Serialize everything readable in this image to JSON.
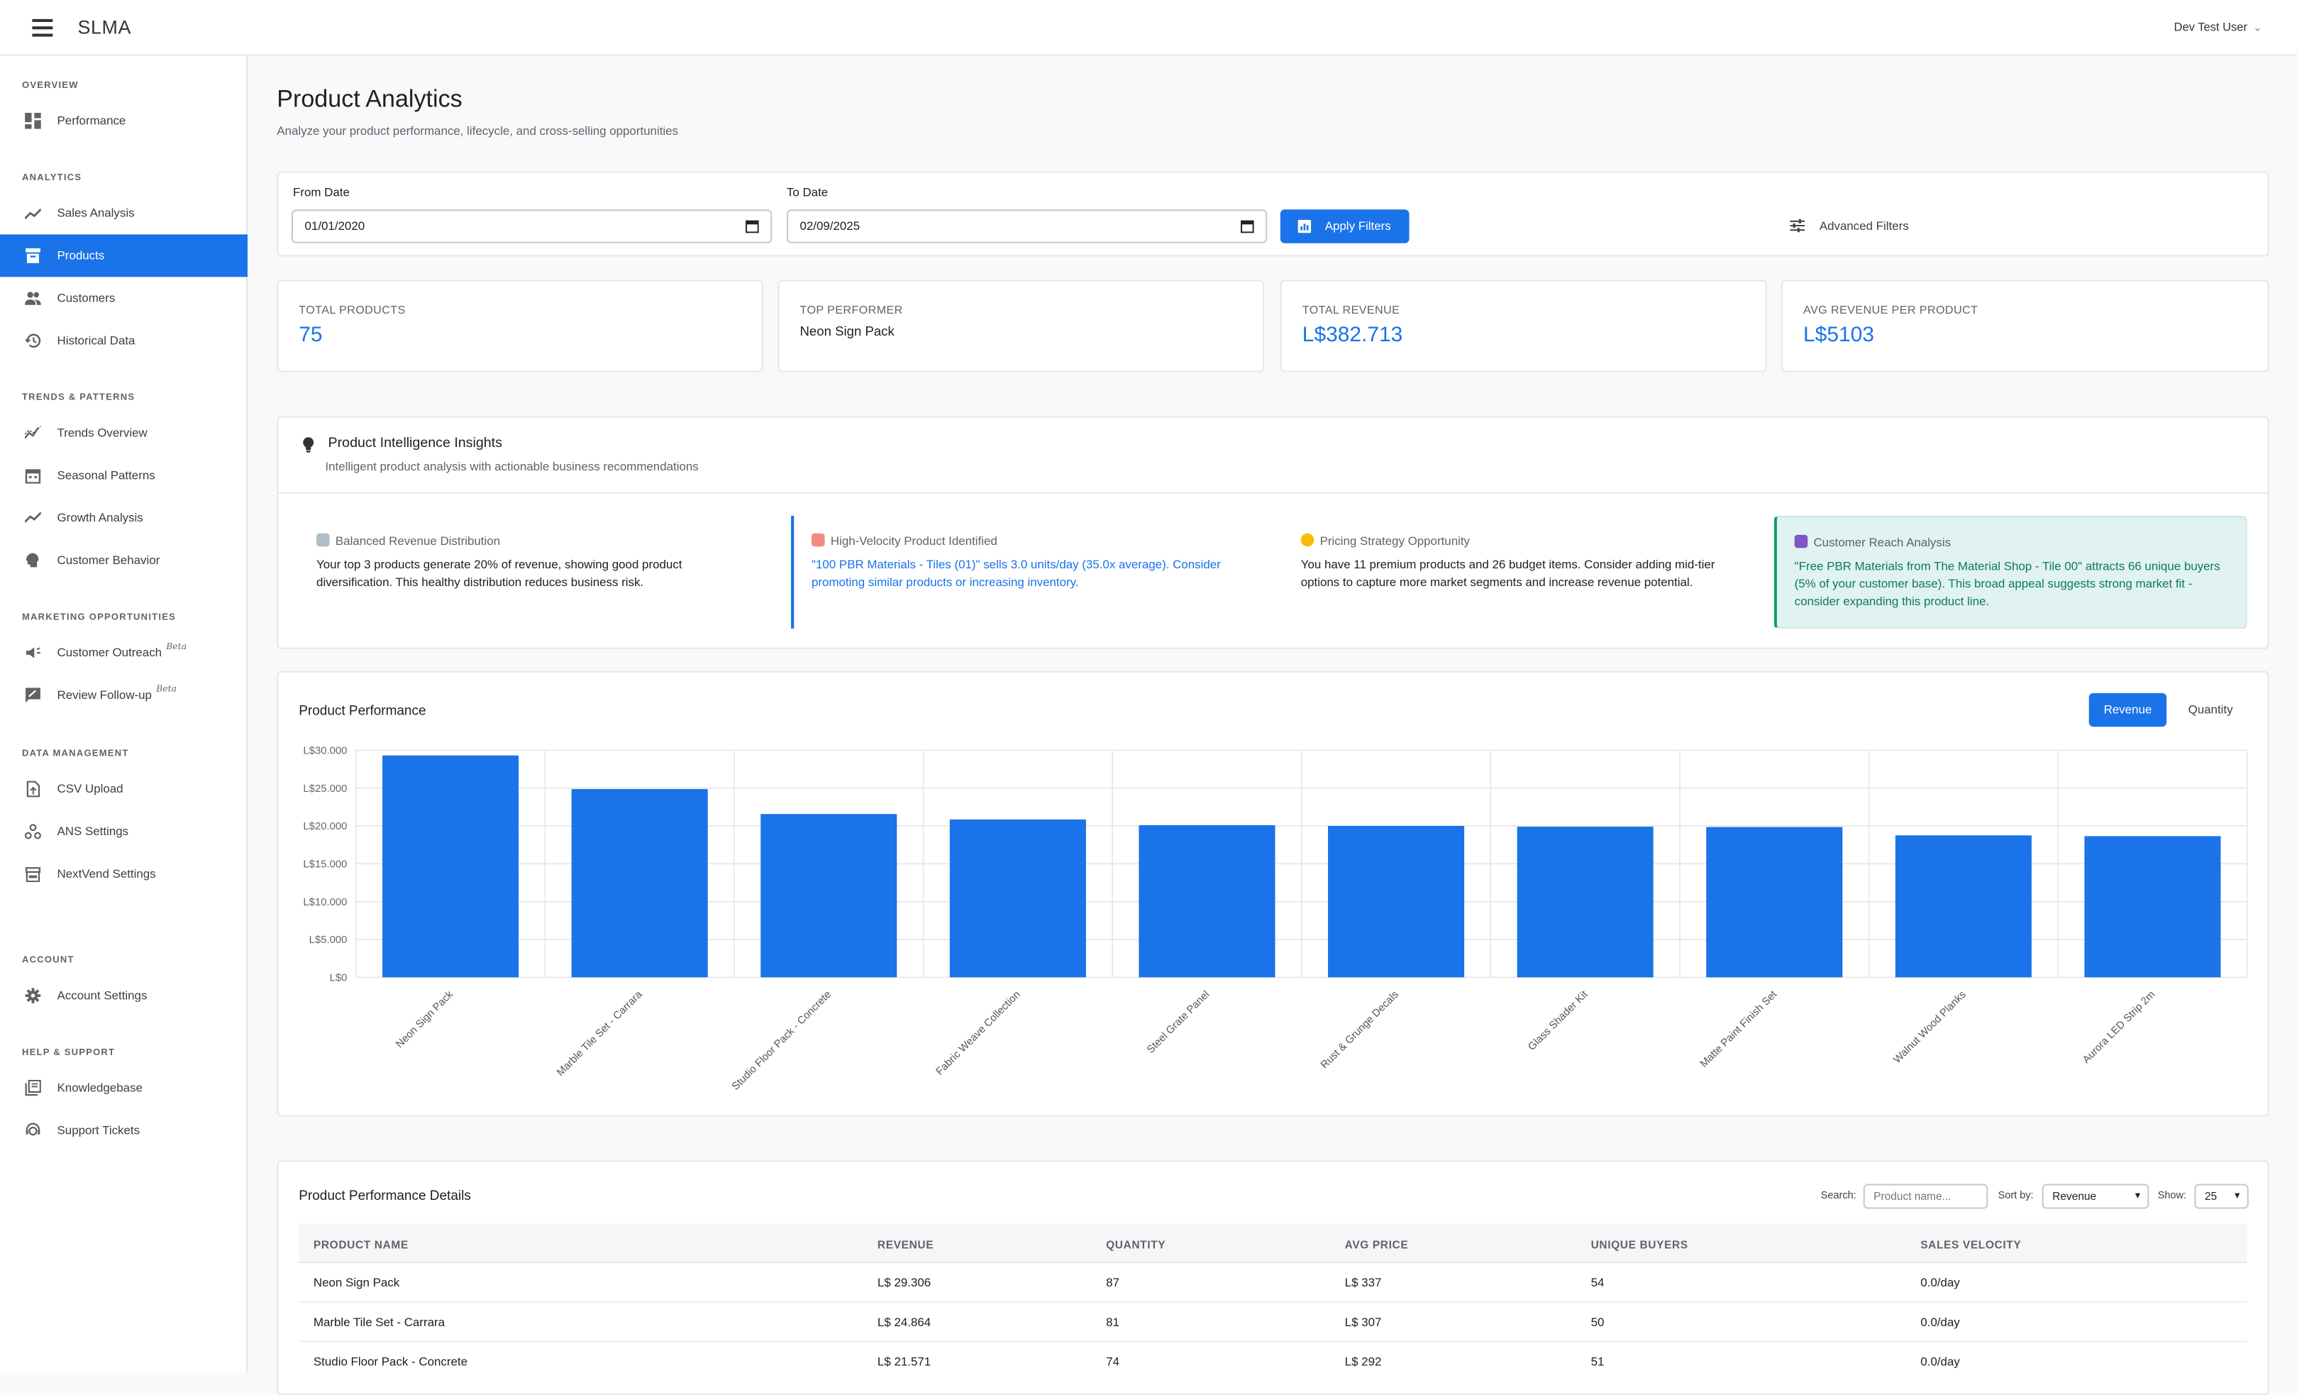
{
  "app": {
    "brand": "SLMA",
    "user": "Dev Test User"
  },
  "sidebar": {
    "sections": [
      {
        "title": "OVERVIEW",
        "items": [
          {
            "label": "Performance",
            "icon": "dashboard-icon"
          }
        ]
      },
      {
        "title": "ANALYTICS",
        "items": [
          {
            "label": "Sales Analysis",
            "icon": "trending-up-icon"
          },
          {
            "label": "Products",
            "icon": "inventory-icon",
            "active": true
          },
          {
            "label": "Customers",
            "icon": "people-icon"
          },
          {
            "label": "Historical Data",
            "icon": "history-icon"
          }
        ]
      },
      {
        "title": "TRENDS & PATTERNS",
        "items": [
          {
            "label": "Trends Overview",
            "icon": "multiline-chart-icon"
          },
          {
            "label": "Seasonal Patterns",
            "icon": "calendar-icon"
          },
          {
            "label": "Growth Analysis",
            "icon": "show-chart-icon"
          },
          {
            "label": "Customer Behavior",
            "icon": "psychology-icon"
          }
        ]
      },
      {
        "title": "MARKETING OPPORTUNITIES",
        "items": [
          {
            "label": "Customer Outreach",
            "icon": "campaign-icon",
            "badge": "Beta"
          },
          {
            "label": "Review Follow-up",
            "icon": "rate-review-icon",
            "badge": "Beta"
          }
        ]
      },
      {
        "title": "DATA MANAGEMENT",
        "items": [
          {
            "label": "CSV Upload",
            "icon": "upload-file-icon"
          },
          {
            "label": "ANS Settings",
            "icon": "webhook-icon"
          },
          {
            "label": "NextVend Settings",
            "icon": "storefront-icon"
          }
        ]
      },
      {
        "title": "ACCOUNT",
        "items": [
          {
            "label": "Account Settings",
            "icon": "gear-icon"
          }
        ]
      },
      {
        "title": "HELP & SUPPORT",
        "items": [
          {
            "label": "Knowledgebase",
            "icon": "library-books-icon"
          },
          {
            "label": "Support Tickets",
            "icon": "support-agent-icon"
          }
        ]
      }
    ]
  },
  "page": {
    "title": "Product Analytics",
    "subtitle": "Analyze your product performance, lifecycle, and cross-selling opportunities"
  },
  "filters": {
    "from_label": "From Date",
    "from_value": "01/01/2020",
    "to_label": "To Date",
    "to_value": "02/09/2025",
    "apply_label": "Apply Filters",
    "advanced_label": "Advanced Filters"
  },
  "kpis": [
    {
      "label": "TOTAL PRODUCTS",
      "value": "75"
    },
    {
      "label": "TOP PERFORMER",
      "value": "Neon Sign Pack"
    },
    {
      "label": "TOTAL REVENUE",
      "value": "L$382.713"
    },
    {
      "label": "AVG REVENUE PER PRODUCT",
      "value": "L$5103"
    }
  ],
  "insights": {
    "title": "Product Intelligence Insights",
    "subtitle": "Intelligent product analysis with actionable business recommendations",
    "items": [
      {
        "heading": "Balanced Revenue Distribution",
        "body": "Your top 3 products generate 20% of revenue, showing good product diversification. This healthy distribution reduces business risk.",
        "icon": "bar-chart-emoji-icon"
      },
      {
        "heading": "High-Velocity Product Identified",
        "body": "\"100 PBR Materials - Tiles (01)\" sells 3.0 units/day (35.0x average). Consider promoting similar products or increasing inventory.",
        "icon": "rocket-emoji-icon"
      },
      {
        "heading": "Pricing Strategy Opportunity",
        "body": "You have 11 premium products and 26 budget items. Consider adding mid-tier options to capture more market segments and increase revenue potential.",
        "icon": "money-bag-emoji-icon"
      },
      {
        "heading": "Customer Reach Analysis",
        "body": "\"Free PBR Materials from The Material Shop - Tile 00\" attracts 66 unique buyers (5% of your customer base). This broad appeal suggests strong market fit - consider expanding this product line.",
        "icon": "people-emoji-icon"
      }
    ]
  },
  "performance": {
    "title": "Product Performance",
    "toggle": {
      "revenue": "Revenue",
      "quantity": "Quantity",
      "selected": "Revenue"
    }
  },
  "chart_data": {
    "type": "bar",
    "categories": [
      "Neon Sign Pack",
      "Marble Tile Set - Carrara",
      "Studio Floor Pack - Concrete",
      "Fabric Weave Collection",
      "Steel Grate Panel",
      "Rust & Grunge Decals",
      "Glass Shader Kit",
      "Matte Paint Finish Set",
      "Walnut Wood Planks",
      "Aurora LED Strip 2m"
    ],
    "values": [
      29306,
      24864,
      21571,
      20850,
      20100,
      20000,
      19900,
      19850,
      18750,
      18650
    ],
    "ylim": [
      0,
      30000
    ],
    "yticks": [
      "L$0",
      "L$5.000",
      "L$10.000",
      "L$15.000",
      "L$20.000",
      "L$25.000",
      "L$30.000"
    ],
    "color": "#1a73e8",
    "grid": true
  },
  "details": {
    "title": "Product Performance Details",
    "search_label": "Search:",
    "search_placeholder": "Product name...",
    "sort_label": "Sort by:",
    "sort_value": "Revenue",
    "show_label": "Show:",
    "show_value": "25",
    "columns": [
      "PRODUCT NAME",
      "REVENUE",
      "QUANTITY",
      "AVG PRICE",
      "UNIQUE BUYERS",
      "SALES VELOCITY"
    ],
    "rows": [
      [
        "Neon Sign Pack",
        "L$ 29.306",
        "87",
        "L$ 337",
        "54",
        "0.0/day"
      ],
      [
        "Marble Tile Set - Carrara",
        "L$ 24.864",
        "81",
        "L$ 307",
        "50",
        "0.0/day"
      ],
      [
        "Studio Floor Pack - Concrete",
        "L$ 21.571",
        "74",
        "L$ 292",
        "51",
        "0.0/day"
      ]
    ]
  }
}
